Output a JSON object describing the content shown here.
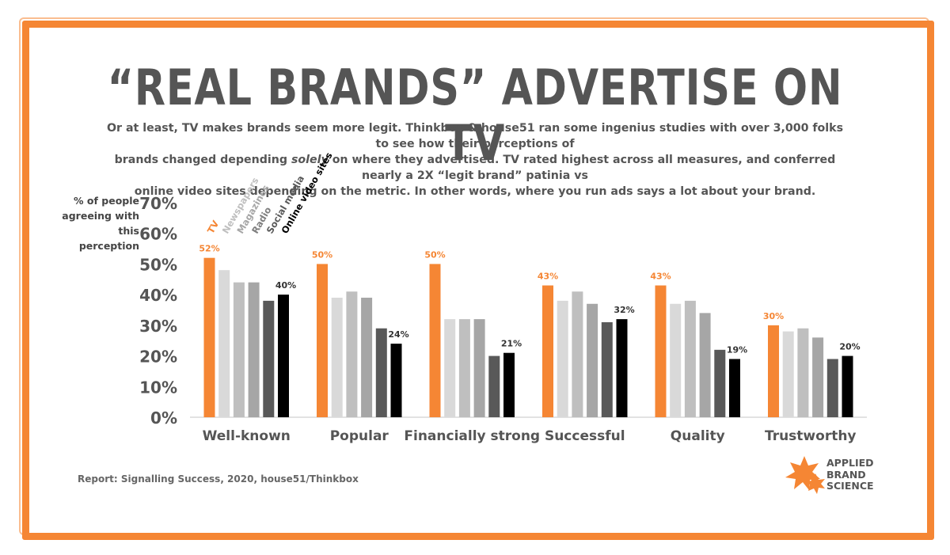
{
  "title": "“REAL BRANDS” ADVERTISE ON TV",
  "subtitle_line1": "Or at least, TV makes brands seem more legit. Thinkbox & house51 ran some ingenius studies with over 3,000 folks to see how their perceptions of",
  "subtitle_line2_pre": "brands changed depending ",
  "subtitle_line2_em": "solely",
  "subtitle_line2_post": " on where they advertised. TV rated highest across all measures, and conferred nearly a 2X “legit brand” patinia vs",
  "subtitle_line3": "online video sites depending on the metric. In other words, where you run ads says a lot about your brand.",
  "source": "Report: Signalling Success, 2020, house51/Thinkbox",
  "logo": {
    "icon": "star-burst-icon",
    "line1": "APPLIED",
    "line2": "BRAND",
    "line3": "SCIENCE"
  },
  "colors": {
    "frame": "#f58634",
    "tv": "#f58634",
    "newspapers": "#d9d9d9",
    "magazines": "#bfbfbf",
    "radio": "#a6a6a6",
    "social_media": "#595959",
    "online_video_sites": "#000000",
    "text": "#555555"
  },
  "chart_data": {
    "type": "bar",
    "title": "“REAL BRANDS” ADVERTISE ON TV",
    "ylabel": "% of people agreeing with this perception",
    "xlabel": "",
    "ylim": [
      0,
      70
    ],
    "yticks": [
      "0%",
      "10%",
      "20%",
      "30%",
      "40%",
      "50%",
      "60%",
      "70%"
    ],
    "grid": false,
    "legend_placement": "top-left, rotated labels",
    "categories": [
      "Well-known",
      "Popular",
      "Financially strong",
      "Successful",
      "Quality",
      "Trustworthy"
    ],
    "series": [
      {
        "name": "TV",
        "color": "#f58634",
        "values": [
          52,
          50,
          50,
          43,
          43,
          30
        ],
        "labels": [
          "52%",
          "50%",
          "50%",
          "43%",
          "43%",
          "30%"
        ]
      },
      {
        "name": "Newspapers",
        "color": "#d9d9d9",
        "values": [
          48,
          39,
          32,
          38,
          37,
          28
        ]
      },
      {
        "name": "Magazines",
        "color": "#bfbfbf",
        "values": [
          44,
          41,
          32,
          41,
          38,
          29
        ]
      },
      {
        "name": "Radio",
        "color": "#a6a6a6",
        "values": [
          44,
          39,
          32,
          37,
          34,
          26
        ]
      },
      {
        "name": "Social media",
        "color": "#595959",
        "values": [
          38,
          29,
          20,
          31,
          22,
          19
        ]
      },
      {
        "name": "Online video sites",
        "color": "#000000",
        "values": [
          40,
          24,
          21,
          32,
          19,
          20
        ],
        "labels": [
          "40%",
          "24%",
          "21%",
          "32%",
          "19%",
          "20%"
        ]
      }
    ]
  }
}
